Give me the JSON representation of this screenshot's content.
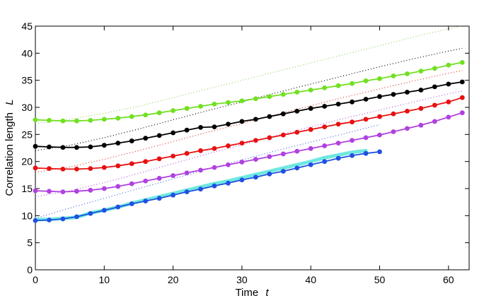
{
  "chart_data": {
    "type": "line",
    "title": "",
    "xlabel": "Time",
    "xlabel_var": "t",
    "ylabel": "Correlation length",
    "ylabel_var": "L",
    "xlim": [
      0,
      63
    ],
    "ylim": [
      0,
      45
    ],
    "xticks": [
      0,
      10,
      20,
      30,
      40,
      50,
      60
    ],
    "yticks": [
      0,
      5,
      10,
      15,
      20,
      25,
      30,
      35,
      40,
      45
    ],
    "grid": false,
    "legend": "none",
    "series": [
      {
        "style": "dotted",
        "color": "#8fd14f",
        "x": [
          0,
          5,
          10,
          15,
          20,
          25,
          30,
          35,
          40,
          45,
          50,
          55,
          60,
          62
        ],
        "y": [
          27.0,
          27.8,
          28.9,
          30.2,
          31.8,
          33.4,
          35.0,
          36.6,
          38.2,
          39.8,
          41.4,
          43.0,
          44.5,
          45.0
        ]
      },
      {
        "style": "dotted",
        "color": "#000000",
        "x": [
          0,
          5,
          10,
          15,
          20,
          25,
          30,
          35,
          40,
          45,
          50,
          55,
          60,
          62
        ],
        "y": [
          22.0,
          23.0,
          24.4,
          26.0,
          27.7,
          29.4,
          31.0,
          32.7,
          34.3,
          35.9,
          37.5,
          39.0,
          40.4,
          40.9
        ]
      },
      {
        "style": "dotted",
        "color": "#e53030",
        "x": [
          0,
          5,
          10,
          15,
          20,
          25,
          30,
          35,
          40,
          45,
          50,
          55,
          60,
          62
        ],
        "y": [
          18.0,
          19.0,
          20.4,
          22.0,
          23.7,
          25.4,
          27.0,
          28.7,
          30.3,
          31.9,
          33.4,
          34.9,
          36.3,
          36.8
        ]
      },
      {
        "style": "dotted",
        "color": "#b050e0",
        "x": [
          0,
          5,
          10,
          15,
          20,
          25,
          30,
          35,
          40,
          45,
          50,
          55,
          60,
          62
        ],
        "y": [
          13.5,
          14.6,
          16.1,
          17.8,
          19.6,
          21.4,
          23.1,
          24.8,
          26.4,
          28.0,
          29.5,
          31.0,
          32.5,
          33.0
        ]
      },
      {
        "style": "dotted",
        "color": "#4060e0",
        "x": [
          0,
          5,
          10,
          15,
          20,
          25,
          30,
          35,
          40,
          45,
          50
        ],
        "y": [
          9.5,
          11.4,
          13.2,
          15.0,
          16.8,
          18.6,
          20.3,
          22.0,
          23.6,
          25.2,
          26.8
        ]
      },
      {
        "style": "thick",
        "color": "#6ee8e0",
        "x": [
          0,
          2,
          4,
          6,
          8,
          10,
          12,
          14,
          16,
          18,
          20,
          22,
          24,
          26,
          28,
          30,
          32,
          34,
          36,
          38,
          40,
          42,
          44,
          46,
          48
        ],
        "y": [
          9.3,
          9.3,
          9.5,
          9.7,
          10.5,
          11.0,
          11.6,
          12.3,
          12.9,
          13.5,
          14.1,
          14.7,
          15.3,
          15.9,
          16.4,
          17.0,
          17.6,
          18.2,
          18.8,
          19.4,
          20.0,
          20.7,
          21.2,
          21.7,
          22.0
        ]
      },
      {
        "style": "markers",
        "color": "#70e020",
        "x": [
          0,
          2,
          4,
          6,
          8,
          10,
          12,
          14,
          16,
          18,
          20,
          22,
          24,
          26,
          28,
          30,
          32,
          34,
          36,
          38,
          40,
          42,
          44,
          46,
          48,
          50,
          52,
          54,
          56,
          58,
          60,
          62
        ],
        "y": [
          27.7,
          27.6,
          27.5,
          27.5,
          27.6,
          27.8,
          28.0,
          28.3,
          28.6,
          29.0,
          29.4,
          29.8,
          30.2,
          30.6,
          30.9,
          31.2,
          31.6,
          32.0,
          32.4,
          32.8,
          33.2,
          33.6,
          34.0,
          34.4,
          34.9,
          35.3,
          35.8,
          36.2,
          36.7,
          37.2,
          37.8,
          38.3
        ]
      },
      {
        "style": "markers",
        "color": "#000000",
        "x": [
          0,
          2,
          4,
          6,
          8,
          10,
          12,
          14,
          16,
          18,
          20,
          22,
          24,
          26,
          28,
          30,
          32,
          34,
          36,
          38,
          40,
          42,
          44,
          46,
          48,
          50,
          52,
          54,
          56,
          58,
          60,
          62
        ],
        "y": [
          22.8,
          22.7,
          22.6,
          22.6,
          22.7,
          23.0,
          23.4,
          23.8,
          24.3,
          24.8,
          25.3,
          25.8,
          26.3,
          26.4,
          26.9,
          27.4,
          27.8,
          28.3,
          28.8,
          29.3,
          29.8,
          30.2,
          30.6,
          31.0,
          31.5,
          32.0,
          32.4,
          32.8,
          33.2,
          33.8,
          34.3,
          34.7
        ]
      },
      {
        "style": "markers",
        "color": "#e81010",
        "x": [
          0,
          2,
          4,
          6,
          8,
          10,
          12,
          14,
          16,
          18,
          20,
          22,
          24,
          26,
          28,
          30,
          32,
          34,
          36,
          38,
          40,
          42,
          44,
          46,
          48,
          50,
          52,
          54,
          56,
          58,
          60,
          62
        ],
        "y": [
          18.8,
          18.7,
          18.6,
          18.6,
          18.7,
          18.9,
          19.2,
          19.6,
          20.0,
          20.5,
          21.0,
          21.5,
          22.0,
          22.4,
          22.9,
          23.4,
          23.9,
          24.4,
          24.9,
          25.4,
          25.9,
          26.4,
          26.9,
          27.3,
          27.8,
          28.3,
          28.8,
          29.3,
          29.8,
          30.4,
          31.0,
          31.8
        ]
      },
      {
        "style": "markers",
        "color": "#b040e0",
        "x": [
          0,
          2,
          4,
          6,
          8,
          10,
          12,
          14,
          16,
          18,
          20,
          22,
          24,
          26,
          28,
          30,
          32,
          34,
          36,
          38,
          40,
          42,
          44,
          46,
          48,
          50,
          52,
          54,
          56,
          58,
          60,
          62
        ],
        "y": [
          14.6,
          14.5,
          14.4,
          14.5,
          14.7,
          15.0,
          15.4,
          15.9,
          16.4,
          16.9,
          17.4,
          17.9,
          18.4,
          18.9,
          19.4,
          19.9,
          20.4,
          20.9,
          21.4,
          21.9,
          22.4,
          22.9,
          23.4,
          23.9,
          24.4,
          24.9,
          25.5,
          26.1,
          26.7,
          27.4,
          28.2,
          29.0
        ]
      },
      {
        "style": "markers",
        "color": "#2050e0",
        "x": [
          0,
          2,
          4,
          6,
          8,
          10,
          12,
          14,
          16,
          18,
          20,
          22,
          24,
          26,
          28,
          30,
          32,
          34,
          36,
          38,
          40,
          42,
          44,
          46,
          48,
          50
        ],
        "y": [
          9.1,
          9.2,
          9.4,
          9.8,
          10.4,
          11.0,
          11.6,
          12.2,
          12.7,
          13.2,
          13.8,
          14.4,
          14.9,
          15.5,
          16.0,
          16.6,
          17.1,
          17.7,
          18.2,
          18.8,
          19.4,
          20.0,
          20.6,
          21.1,
          21.5,
          21.8
        ]
      }
    ]
  }
}
